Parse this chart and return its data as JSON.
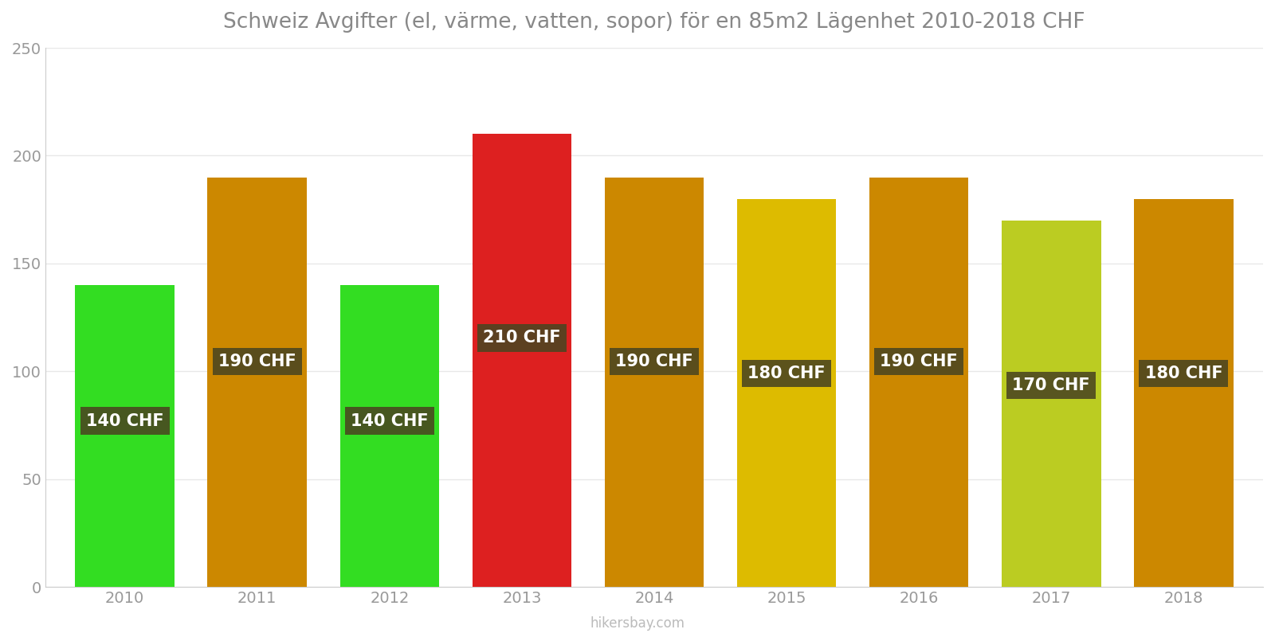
{
  "title": "Schweiz Avgifter (el, värme, vatten, sopor) för en 85m2 Lägenhet 2010-2018 CHF",
  "years": [
    2010,
    2011,
    2012,
    2013,
    2014,
    2015,
    2016,
    2017,
    2018
  ],
  "values": [
    140,
    190,
    140,
    210,
    190,
    180,
    190,
    170,
    180
  ],
  "bar_colors": [
    "#33dd22",
    "#cc8800",
    "#33dd22",
    "#dd2020",
    "#cc8800",
    "#ddbb00",
    "#cc8800",
    "#bbcc22",
    "#cc8800"
  ],
  "ylim": [
    0,
    250
  ],
  "yticks": [
    0,
    50,
    100,
    150,
    200,
    250
  ],
  "label_bg_color": "#4a4520",
  "label_text_color": "#ffffff",
  "title_color": "#888888",
  "axis_color": "#cccccc",
  "tick_color": "#999999",
  "grid_color": "#e8e8e8",
  "watermark": "hikersbay.com",
  "background_color": "#ffffff",
  "title_fontsize": 19,
  "bar_width": 0.75,
  "label_fontsize": 15
}
